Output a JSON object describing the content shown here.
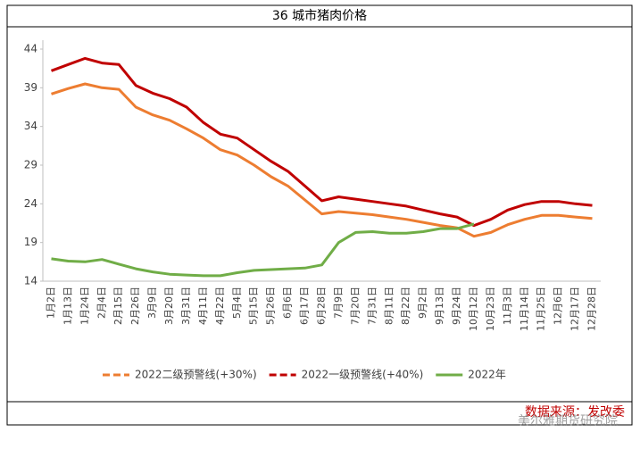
{
  "chart_data": {
    "type": "line",
    "title": "36 城市猪肉价格",
    "source": "数据来源：发改委",
    "watermark": "美尔雅期货研究院",
    "categories": [
      "1月2日",
      "1月13日",
      "1月24日",
      "2月4日",
      "2月15日",
      "2月26日",
      "3月9日",
      "3月20日",
      "3月31日",
      "4月11日",
      "4月22日",
      "5月4日",
      "5月15日",
      "5月26日",
      "6月6日",
      "6月17日",
      "6月28日",
      "7月9日",
      "7月20日",
      "7月31日",
      "8月11日",
      "8月22日",
      "9月2日",
      "9月13日",
      "9月24日",
      "10月12日",
      "10月23日",
      "11月3日",
      "11月14日",
      "11月25日",
      "12月6日",
      "12月17日",
      "12月28日"
    ],
    "series": [
      {
        "name": "2022二级预警线(+30%)",
        "color": "#ed7d31",
        "values": [
          38.2,
          38.9,
          39.5,
          39.0,
          38.8,
          36.5,
          35.5,
          34.8,
          33.7,
          32.5,
          31.0,
          30.3,
          29.0,
          27.5,
          26.3,
          24.5,
          22.7,
          23.0,
          22.8,
          22.6,
          22.3,
          22.0,
          21.6,
          21.2,
          20.9,
          19.8,
          20.3,
          21.3,
          22.0,
          22.5,
          22.5,
          22.3,
          22.1
        ]
      },
      {
        "name": "2022一级预警线(+40%)",
        "color": "#c00000",
        "values": [
          41.2,
          42.0,
          42.8,
          42.2,
          42.0,
          39.3,
          38.3,
          37.6,
          36.5,
          34.5,
          33.0,
          32.5,
          31.0,
          29.5,
          28.2,
          26.3,
          24.4,
          24.9,
          24.6,
          24.3,
          24.0,
          23.7,
          23.2,
          22.7,
          22.3,
          21.2,
          22.0,
          23.2,
          23.9,
          24.3,
          24.3,
          24.0,
          23.8
        ]
      },
      {
        "name": "2022年",
        "color": "#70ad47",
        "values": [
          16.9,
          16.6,
          16.5,
          16.8,
          16.2,
          15.6,
          15.2,
          14.9,
          14.8,
          14.7,
          14.7,
          15.1,
          15.4,
          15.5,
          15.6,
          15.7,
          16.1,
          19.0,
          20.3,
          20.4,
          20.2,
          20.2,
          20.4,
          20.8,
          20.8,
          21.4,
          null,
          null,
          null,
          null,
          null,
          null,
          null
        ]
      }
    ],
    "ylim": [
      14,
      44
    ],
    "yticks": [
      14,
      19,
      24,
      29,
      34,
      39,
      44
    ],
    "grid": false,
    "legend": "bottom"
  }
}
